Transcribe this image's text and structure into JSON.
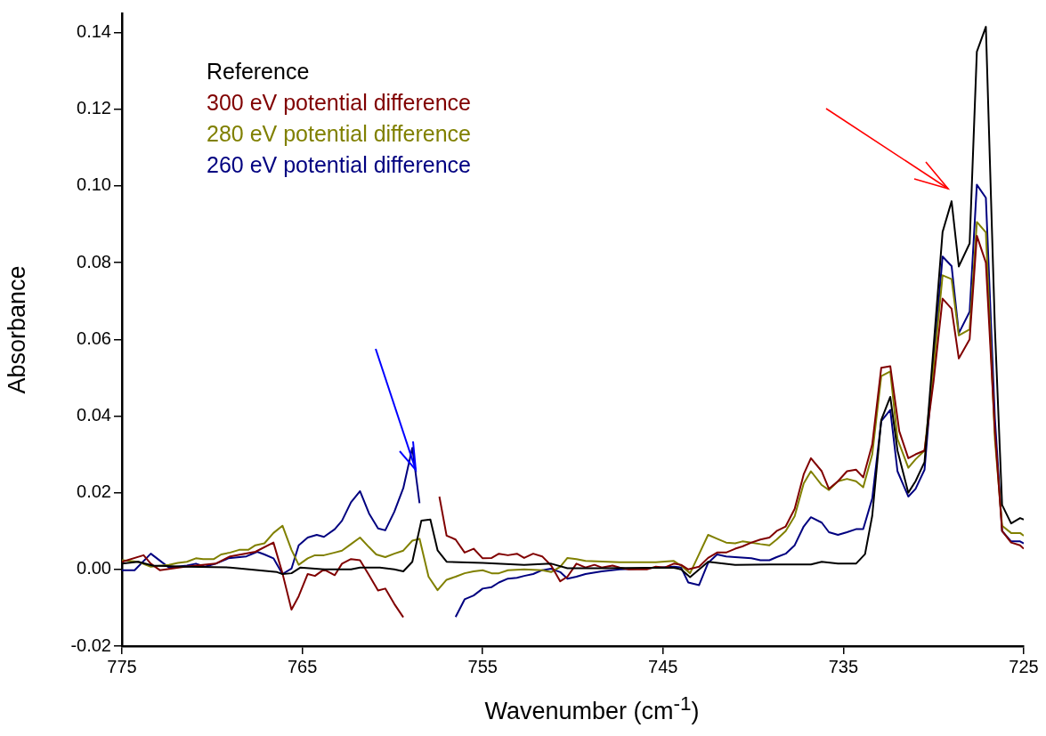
{
  "chart_data": {
    "type": "line",
    "xlabel": "Wavenumber (cm$^{-1}$)",
    "ylabel": "Absorbance",
    "xlim": [
      775,
      725
    ],
    "xticks": [
      775,
      765,
      755,
      745,
      735,
      725
    ],
    "ylim": [
      -0.02,
      0.145
    ],
    "yticks": [
      {
        "value": -0.02,
        "label": "-0.02"
      },
      {
        "value": 0,
        "label": "0.00"
      },
      {
        "value": 0.02,
        "label": "0.02"
      },
      {
        "value": 0.04,
        "label": "0.04"
      },
      {
        "value": 0.06,
        "label": "0.06"
      },
      {
        "value": 0.08,
        "label": "0.08"
      },
      {
        "value": 0.1,
        "label": "0.10"
      },
      {
        "value": 0.12,
        "label": "0.12"
      },
      {
        "value": 0.14,
        "label": "0.14"
      }
    ],
    "grid": false,
    "legend": "top left",
    "marker": "none",
    "line_style": "solid",
    "series": [
      {
        "name": "Reference",
        "color": "#000000",
        "x": [
          775.0,
          774.1,
          773.3,
          771.5,
          769.0,
          766.4,
          766.1,
          765.6,
          765.1,
          763.8,
          762.3,
          761.8,
          760.7,
          759.9,
          759.4,
          758.9,
          758.4,
          757.9,
          757.5,
          757.0,
          755.0,
          752.7,
          751.2,
          750.3,
          748.4,
          745.9,
          744.4,
          744.0,
          743.5,
          742.5,
          741.0,
          739.1,
          736.8,
          736.2,
          735.3,
          734.3,
          733.8,
          733.4,
          732.9,
          732.4,
          732.0,
          731.4,
          731.0,
          730.5,
          730.0,
          729.5,
          729.0,
          728.6,
          728.0,
          727.6,
          727.1,
          726.6,
          726.2,
          725.7,
          725.2,
          725.0
        ],
        "values": [
          0.0015,
          0.002,
          0.001,
          0.0007,
          0.0005,
          -0.0007,
          -0.0012,
          -0.001,
          0.0005,
          0,
          0,
          0.0005,
          0.0005,
          0,
          -0.0005,
          0.002,
          0.0127,
          0.013,
          0.005,
          0.002,
          0.0017,
          0.0012,
          0.0015,
          0.0003,
          0.0003,
          0.0004,
          0.0004,
          0,
          -0.002,
          0.002,
          0.0012,
          0.0013,
          0.0013,
          0.002,
          0.0015,
          0.0015,
          0.004,
          0.014,
          0.039,
          0.045,
          0.031,
          0.02,
          0.023,
          0.028,
          0.058,
          0.088,
          0.096,
          0.079,
          0.085,
          0.135,
          0.1415,
          0.063,
          0.0168,
          0.012,
          0.0134,
          0.013
        ]
      },
      {
        "name": "300 eV potential difference",
        "color": "#800000",
        "x": [
          775.0,
          773.8,
          773.4,
          772.9,
          771.5,
          769.8,
          769.0,
          767.6,
          766.6,
          766.1,
          765.6,
          765.2,
          764.7,
          764.3,
          763.8,
          763.2,
          762.8,
          762.3,
          761.8,
          761.3,
          760.8,
          760.4,
          759.9,
          759.4,
          758.9,
          758.0,
          757.4,
          757.0,
          756.5,
          756.0,
          755.5,
          755.0,
          754.5,
          754.1,
          753.6,
          753.1,
          752.7,
          752.2,
          751.7,
          751.2,
          750.7,
          750.3,
          749.8,
          749.3,
          748.8,
          748.4,
          747.8,
          747.4,
          746.9,
          745.9,
          745.4,
          744.9,
          744.4,
          744.0,
          743.6,
          743.0,
          742.5,
          742.0,
          741.5,
          741.0,
          740.6,
          740.1,
          739.6,
          739.1,
          738.7,
          738.2,
          737.7,
          737.2,
          736.8,
          736.2,
          735.8,
          735.3,
          734.8,
          734.3,
          733.9,
          733.4,
          732.9,
          732.4,
          731.9,
          731.4,
          731.0,
          730.5,
          730.0,
          729.5,
          729.0,
          728.6,
          728.0,
          727.6,
          727.1,
          726.6,
          726.2,
          725.7,
          725.2,
          725.0
        ],
        "values": [
          0.002,
          0.0037,
          0.0015,
          -0.0002,
          0.0007,
          0.0015,
          0.0034,
          0.0046,
          0.007,
          -0.001,
          -0.0105,
          -0.007,
          -0.0012,
          -0.0017,
          0,
          -0.0015,
          0.0015,
          0.0027,
          0.0024,
          -0.0015,
          -0.0055,
          -0.005,
          -0.009,
          -0.0125,
          null,
          null,
          0.019,
          0.0088,
          0.0078,
          0.0044,
          0.0054,
          0.0029,
          0.003,
          0.0041,
          0.0037,
          0.0041,
          0.003,
          0.0041,
          0.0034,
          0.001,
          -0.0031,
          -0.0019,
          0.0015,
          0.0005,
          0.0012,
          0.0005,
          0.001,
          0.0005,
          0,
          0,
          0.0007,
          0.0005,
          0.0015,
          0.0012,
          0,
          0.0007,
          0.003,
          0.0044,
          0.0044,
          0.0054,
          0.006,
          0.007,
          0.0078,
          0.0083,
          0.01,
          0.0112,
          0.0158,
          0.0248,
          0.029,
          0.0256,
          0.021,
          0.023,
          0.0256,
          0.026,
          0.024,
          0.0326,
          0.0526,
          0.053,
          0.036,
          0.029,
          0.03,
          0.031,
          0.049,
          0.0706,
          0.068,
          0.055,
          0.06,
          0.087,
          0.08,
          0.036,
          0.01,
          0.007,
          0.0063,
          0.0054
        ]
      },
      {
        "name": "280 eV potential difference",
        "color": "#808000",
        "x": [
          775.0,
          774.1,
          773.4,
          772.4,
          771.9,
          771.4,
          770.9,
          770.5,
          769.9,
          769.5,
          769.0,
          768.5,
          768.0,
          767.6,
          767.1,
          766.6,
          766.1,
          765.6,
          765.2,
          764.7,
          764.3,
          763.8,
          763.2,
          762.8,
          762.3,
          761.8,
          761.3,
          760.9,
          760.4,
          759.9,
          759.4,
          758.9,
          758.5,
          758.0,
          757.5,
          757.0,
          756.5,
          756.0,
          755.5,
          755.0,
          754.5,
          754.1,
          753.6,
          752.7,
          751.7,
          751.2,
          750.7,
          750.3,
          749.8,
          749.3,
          747.4,
          745.4,
          744.4,
          744.0,
          743.5,
          743.0,
          742.5,
          742.0,
          741.5,
          741.0,
          740.6,
          740.1,
          739.6,
          739.1,
          738.7,
          738.2,
          737.7,
          737.2,
          736.8,
          736.2,
          735.8,
          735.3,
          734.8,
          734.3,
          733.9,
          733.4,
          732.9,
          732.4,
          732.0,
          731.4,
          731.0,
          730.5,
          730.0,
          729.5,
          729.0,
          728.6,
          728.0,
          727.6,
          727.1,
          726.6,
          726.2,
          725.7,
          725.2,
          725.0
        ],
        "values": [
          0.0024,
          0.002,
          0.0007,
          0.0012,
          0.0017,
          0.002,
          0.0029,
          0.0027,
          0.0027,
          0.0039,
          0.0044,
          0.0051,
          0.0051,
          0.0063,
          0.0068,
          0.0095,
          0.0114,
          0.0051,
          0.0012,
          0.0029,
          0.0037,
          0.0037,
          0.0044,
          0.0049,
          0.0066,
          0.0083,
          0.0058,
          0.0039,
          0.0032,
          0.0041,
          0.0049,
          0.0075,
          0.008,
          -0.0019,
          -0.0054,
          -0.0027,
          -0.0019,
          -0.001,
          -0.0005,
          -0.0002,
          -0.001,
          -0.001,
          -0.0002,
          0,
          -0.0002,
          -0.0007,
          0.0007,
          0.003,
          0.0027,
          0.0022,
          0.0019,
          0.0019,
          0.0022,
          0.001,
          -0.001,
          0.004,
          0.009,
          0.008,
          0.007,
          0.0068,
          0.0073,
          0.007,
          0.0066,
          0.0063,
          0.0078,
          0.01,
          0.0139,
          0.0224,
          0.0256,
          0.022,
          0.0207,
          0.023,
          0.0236,
          0.023,
          0.0214,
          0.03,
          0.0504,
          0.0516,
          0.034,
          0.0265,
          0.0287,
          0.031,
          0.0526,
          0.0767,
          0.0757,
          0.061,
          0.0626,
          0.0906,
          0.0879,
          0.034,
          0.0114,
          0.0095,
          0.0095,
          0.0088
        ]
      },
      {
        "name": "260 eV potential difference",
        "color": "#000080",
        "x": [
          775.0,
          774.3,
          773.4,
          772.4,
          771.4,
          770.9,
          770.4,
          769.8,
          769.1,
          768.1,
          767.5,
          767.1,
          766.6,
          766.1,
          765.6,
          765.2,
          764.7,
          764.2,
          763.8,
          763.2,
          762.8,
          762.3,
          761.8,
          761.3,
          760.8,
          760.4,
          759.9,
          759.4,
          758.9,
          758.5,
          758.0,
          757.1,
          756.5,
          756.0,
          755.5,
          755.0,
          754.5,
          754.1,
          753.6,
          753.1,
          752.7,
          752.2,
          751.7,
          751.2,
          750.7,
          750.3,
          749.8,
          749.3,
          748.4,
          747.4,
          746.4,
          744.4,
          744.0,
          743.6,
          743.0,
          742.5,
          742.0,
          741.5,
          741.0,
          740.1,
          739.6,
          739.1,
          738.7,
          738.2,
          737.7,
          737.2,
          736.8,
          736.2,
          735.8,
          735.3,
          734.8,
          734.3,
          733.9,
          733.4,
          732.9,
          732.4,
          732.0,
          731.4,
          731.0,
          730.5,
          730.0,
          729.5,
          729.0,
          728.6,
          728.0,
          727.6,
          727.1,
          726.6,
          726.2,
          725.7,
          725.2,
          725.0
        ],
        "values": [
          -0.0002,
          -0.0002,
          0.0041,
          0.0005,
          0.001,
          0.0015,
          0.0007,
          0.0015,
          0.0029,
          0.0034,
          0.0046,
          0.0039,
          0.0029,
          -0.0012,
          0.0002,
          0.0063,
          0.0083,
          0.009,
          0.0085,
          0.0105,
          0.0127,
          0.0175,
          0.0204,
          0.0146,
          0.0107,
          0.0102,
          0.015,
          0.0212,
          0.0317,
          0.0173,
          null,
          null,
          -0.0124,
          -0.0078,
          -0.0068,
          -0.005,
          -0.0046,
          -0.0034,
          -0.0024,
          -0.0022,
          -0.0017,
          -0.0012,
          -0.0002,
          0.0002,
          -0.0007,
          -0.0024,
          -0.0019,
          -0.0012,
          -0.0005,
          0,
          0.0002,
          0.0007,
          0.0005,
          -0.0034,
          -0.0041,
          0.0017,
          0.0039,
          0.0034,
          0.0032,
          0.0029,
          0.0024,
          0.0024,
          0.0032,
          0.0041,
          0.0063,
          0.0112,
          0.0136,
          0.0122,
          0.0097,
          0.009,
          0.0097,
          0.0105,
          0.0105,
          0.0185,
          0.0387,
          0.0416,
          0.0256,
          0.019,
          0.021,
          0.026,
          0.0545,
          0.0816,
          0.0791,
          0.0616,
          0.0672,
          0.1003,
          0.0969,
          0.0394,
          0.01,
          0.0073,
          0.0073,
          0.0068
        ]
      }
    ]
  }
}
